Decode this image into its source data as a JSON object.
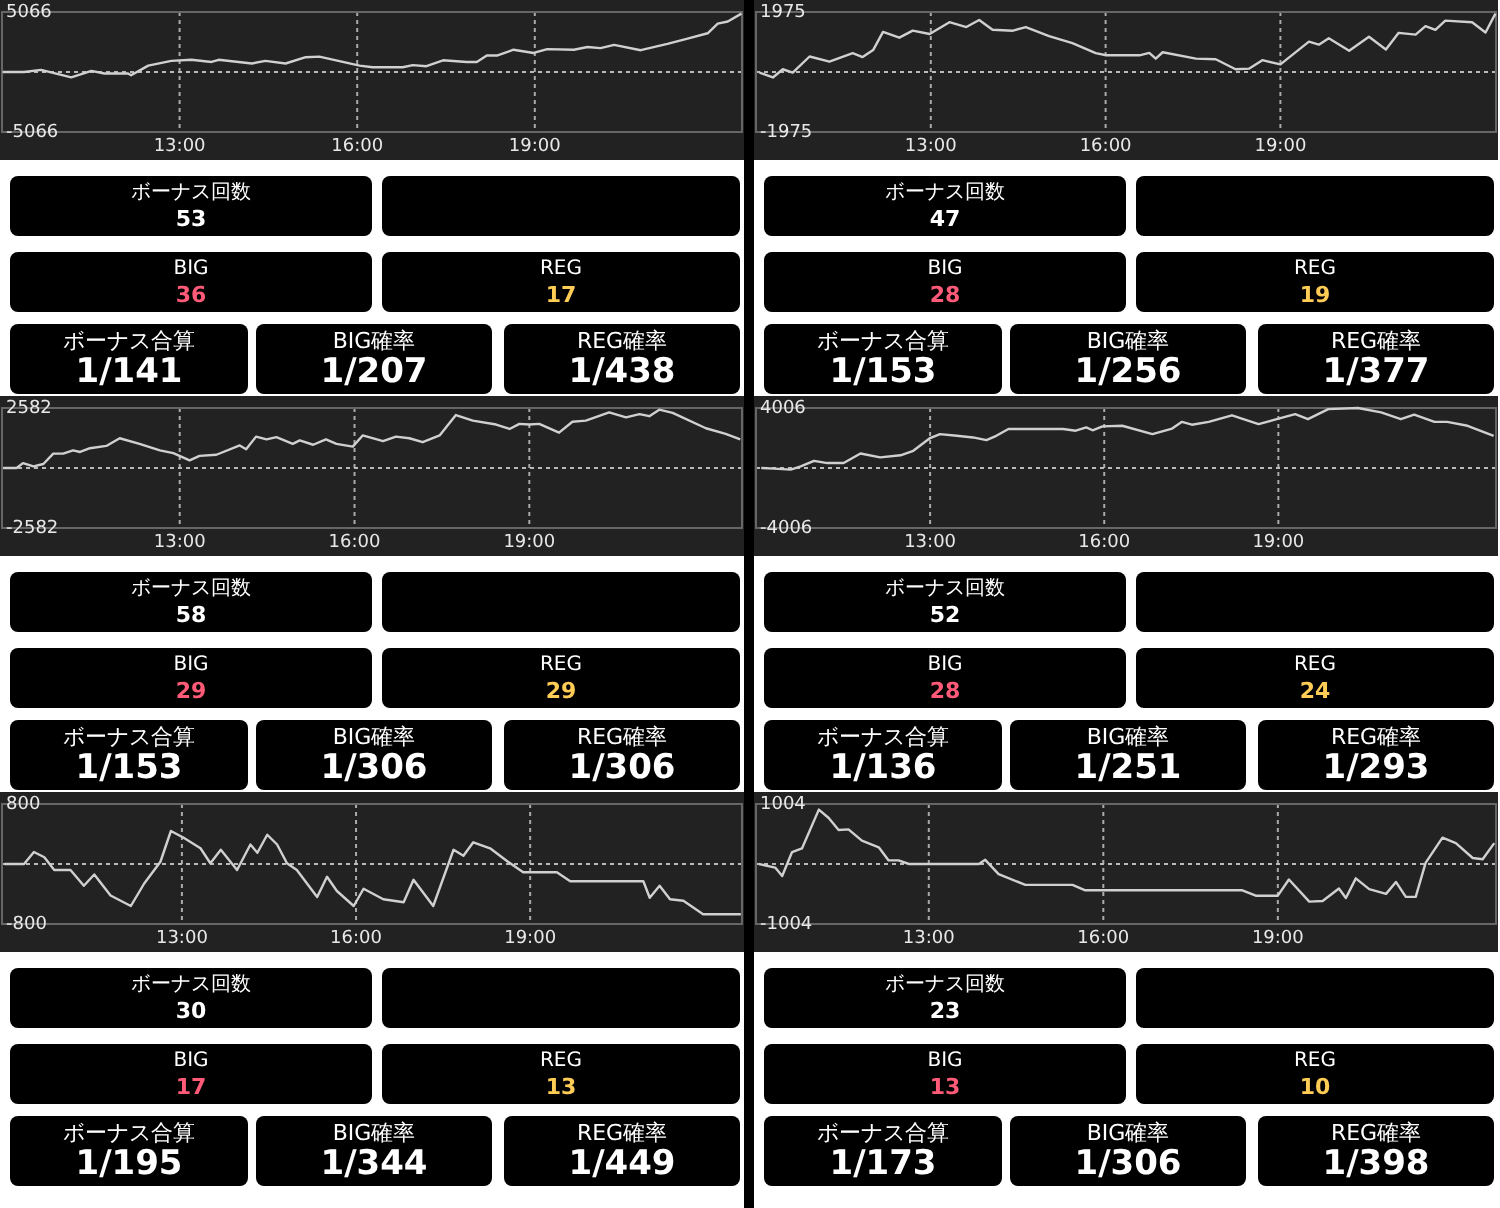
{
  "chart_data": [
    {
      "type": "line",
      "x": [
        10.01,
        10.37,
        10.66,
        11.17,
        11.51,
        11.73,
        12.13,
        12.18,
        12.47,
        12.86,
        13.2,
        13.54,
        13.66,
        14.22,
        14.45,
        14.79,
        15.13,
        15.36,
        16.04,
        16.26,
        16.77,
        16.94,
        17.17,
        17.45,
        17.85,
        18.02,
        18.19,
        18.36,
        18.64,
        18.98,
        19.21,
        19.66,
        19.89,
        20.11,
        20.34,
        20.79,
        21.24,
        21.58,
        21.92,
        22.09,
        22.26,
        22.49
      ],
      "series": [
        {
          "color": "#d0d0d0",
          "values": [
            0,
            0,
            180,
            -450,
            90,
            -130,
            -130,
            -270,
            540,
            940,
            1030,
            850,
            1030,
            720,
            940,
            720,
            1250,
            1300,
            540,
            400,
            400,
            580,
            490,
            990,
            850,
            850,
            1390,
            1390,
            1880,
            1610,
            1930,
            1880,
            2110,
            2020,
            2290,
            1840,
            2370,
            2820,
            3270,
            4080,
            4260,
            4930
          ]
        }
      ],
      "xlim": [
        10,
        22.5
      ],
      "ylim": [
        -5066,
        5066
      ],
      "xticks": [
        {
          "value": 13,
          "label": "13:00"
        },
        {
          "value": 16,
          "label": "16:00"
        },
        {
          "value": 19,
          "label": "19:00"
        }
      ],
      "yticks": [
        -5066,
        5066
      ],
      "grid": "x",
      "ref_lines": [
        {
          "axis": "y",
          "value": 0,
          "color": "#bbbbbb",
          "line_style": "dotted"
        }
      ]
    },
    {
      "type": "other",
      "annotations": [
        "ボーナス回数",
        "53",
        "BIG",
        "36",
        "REG",
        "17",
        "ボーナス合算",
        "1/141",
        "BIG確率",
        "1/207",
        "REG確率",
        "1/438"
      ]
    },
    {
      "type": "line",
      "x": [
        10.06,
        10.29,
        10.46,
        10.63,
        10.92,
        11.26,
        11.66,
        11.83,
        12.01,
        12.18,
        12.46,
        12.69,
        12.98,
        13.32,
        13.61,
        13.83,
        14.06,
        14.41,
        14.63,
        15.03,
        15.43,
        15.83,
        16.01,
        16.58,
        16.75,
        16.86,
        16.98,
        17.55,
        17.89,
        18.23,
        18.46,
        18.69,
        19.0,
        19.49,
        19.66,
        19.83,
        20.18,
        20.52,
        20.81,
        21.03,
        21.32,
        21.49,
        21.66,
        21.83,
        22.29,
        22.52,
        22.69
      ],
      "series": [
        {
          "color": "#d0d0d0",
          "values": [
            -20,
            -180,
            90,
            -20,
            510,
            340,
            620,
            490,
            720,
            1320,
            1130,
            1360,
            1250,
            1640,
            1480,
            1710,
            1390,
            1360,
            1480,
            1180,
            950,
            620,
            550,
            550,
            630,
            440,
            650,
            440,
            420,
            90,
            110,
            390,
            250,
            1000,
            900,
            1110,
            700,
            1160,
            740,
            1290,
            1230,
            1510,
            1390,
            1690,
            1640,
            1300,
            1920
          ]
        }
      ],
      "xlim": [
        10,
        22.7
      ],
      "ylim": [
        -1975,
        1975
      ],
      "xticks": [
        {
          "value": 13,
          "label": "13:00"
        },
        {
          "value": 16,
          "label": "16:00"
        },
        {
          "value": 19,
          "label": "19:00"
        }
      ],
      "yticks": [
        -1975,
        1975
      ],
      "grid": "x",
      "ref_lines": [
        {
          "axis": "y",
          "value": 0,
          "color": "#bbbbbb",
          "line_style": "dotted"
        }
      ]
    },
    {
      "type": "other",
      "annotations": [
        "ボーナス回数",
        "47",
        "BIG",
        "28",
        "REG",
        "19",
        "ボーナス合算",
        "1/153",
        "BIG確率",
        "1/256",
        "REG確率",
        "1/377"
      ]
    },
    {
      "type": "line",
      "x": [
        9.97,
        10.2,
        10.31,
        10.49,
        10.66,
        10.83,
        11.0,
        11.17,
        11.29,
        11.46,
        11.74,
        11.97,
        12.31,
        12.66,
        12.89,
        13.17,
        13.34,
        13.63,
        14.03,
        14.14,
        14.31,
        14.49,
        14.66,
        14.94,
        15.06,
        15.29,
        15.51,
        15.69,
        15.97,
        16.14,
        16.49,
        16.71,
        16.94,
        17.17,
        17.46,
        17.74,
        18.03,
        18.43,
        18.66,
        18.83,
        19.0,
        19.17,
        19.51,
        19.74,
        19.97,
        20.37,
        20.66,
        20.89,
        21.06,
        21.23,
        21.46,
        22.03,
        22.37,
        22.62
      ],
      "series": [
        {
          "color": "#d0d0d0",
          "values": [
            0,
            0,
            210,
            70,
            170,
            620,
            620,
            760,
            690,
            850,
            950,
            1280,
            1040,
            760,
            640,
            330,
            520,
            570,
            970,
            810,
            1350,
            1230,
            1330,
            1040,
            1190,
            1000,
            1230,
            1040,
            920,
            1400,
            1160,
            1350,
            1280,
            1110,
            1400,
            2280,
            2040,
            1870,
            1680,
            1900,
            1870,
            1900,
            1520,
            1990,
            2040,
            2390,
            2180,
            2320,
            2230,
            2510,
            2370,
            1710,
            1470,
            1230
          ]
        }
      ],
      "xlim": [
        9.95,
        22.65
      ],
      "ylim": [
        -2582,
        2582
      ],
      "xticks": [
        {
          "value": 13,
          "label": "13:00"
        },
        {
          "value": 16,
          "label": "16:00"
        },
        {
          "value": 19,
          "label": "19:00"
        }
      ],
      "yticks": [
        -2582,
        2582
      ],
      "grid": "x",
      "ref_lines": [
        {
          "axis": "y",
          "value": 0,
          "color": "#bbbbbb",
          "line_style": "dotted"
        }
      ]
    },
    {
      "type": "other",
      "annotations": [
        "ボーナス回数",
        "58",
        "BIG",
        "29",
        "REG",
        "29",
        "ボーナス合算",
        "1/153",
        "BIG確率",
        "1/306",
        "REG確率",
        "1/306"
      ]
    },
    {
      "type": "line",
      "x": [
        10.09,
        10.31,
        10.6,
        10.77,
        11.0,
        11.23,
        11.51,
        11.8,
        12.14,
        12.49,
        12.71,
        13.0,
        13.17,
        13.46,
        13.74,
        13.97,
        14.14,
        14.35,
        15.29,
        15.51,
        15.69,
        15.8,
        15.97,
        16.31,
        16.83,
        17.17,
        17.34,
        17.51,
        17.8,
        18.2,
        18.66,
        18.94,
        19.29,
        19.51,
        19.86,
        20.37,
        20.77,
        21.11,
        21.34,
        21.69,
        21.91,
        22.26,
        22.71
      ],
      "series": [
        {
          "color": "#d0d0d0",
          "values": [
            0,
            -40,
            -110,
            110,
            480,
            330,
            330,
            970,
            710,
            850,
            1150,
            2000,
            2260,
            2150,
            2040,
            1860,
            2150,
            2600,
            2600,
            2490,
            2710,
            2520,
            2780,
            2820,
            2260,
            2630,
            3080,
            2890,
            3080,
            3520,
            2930,
            3230,
            3600,
            3260,
            3930,
            4006,
            3710,
            3260,
            3560,
            3080,
            3080,
            2820,
            2150
          ]
        }
      ],
      "xlim": [
        10,
        22.75
      ],
      "ylim": [
        -4006,
        4006
      ],
      "xticks": [
        {
          "value": 13,
          "label": "13:00"
        },
        {
          "value": 16,
          "label": "16:00"
        },
        {
          "value": 19,
          "label": "19:00"
        }
      ],
      "yticks": [
        -4006,
        4006
      ],
      "grid": "x",
      "ref_lines": [
        {
          "axis": "y",
          "value": 0,
          "color": "#bbbbbb",
          "line_style": "dotted"
        }
      ]
    },
    {
      "type": "other",
      "annotations": [
        "ボーナス回数",
        "52",
        "BIG",
        "28",
        "REG",
        "24",
        "ボーナス合算",
        "1/136",
        "BIG確率",
        "1/251",
        "REG確率",
        "1/293"
      ]
    },
    {
      "type": "line",
      "x": [
        9.94,
        10.28,
        10.45,
        10.63,
        10.8,
        11.08,
        11.31,
        11.49,
        11.77,
        12.12,
        12.35,
        12.63,
        12.81,
        13.03,
        13.32,
        13.49,
        13.67,
        13.95,
        14.18,
        14.3,
        14.47,
        14.64,
        14.81,
        14.98,
        15.33,
        15.5,
        15.67,
        15.96,
        16.13,
        16.47,
        16.82,
        16.99,
        17.33,
        17.68,
        17.85,
        18.02,
        18.31,
        18.6,
        18.88,
        19.46,
        19.69,
        20.95,
        21.06,
        21.23,
        21.41,
        21.64,
        21.98,
        22.63
      ],
      "series": [
        {
          "color": "#d0d0d0",
          "values": [
            0,
            0,
            160,
            90,
            -80,
            -80,
            -290,
            -140,
            -420,
            -560,
            -260,
            30,
            440,
            350,
            210,
            10,
            190,
            -80,
            260,
            150,
            390,
            260,
            10,
            -80,
            -440,
            -170,
            -360,
            -560,
            -330,
            -470,
            -510,
            -210,
            -560,
            190,
            110,
            290,
            210,
            40,
            -110,
            -110,
            -230,
            -230,
            -450,
            -290,
            -470,
            -490,
            -670,
            -670
          ]
        }
      ],
      "xlim": [
        9.9,
        22.65
      ],
      "ylim": [
        -800,
        800
      ],
      "xticks": [
        {
          "value": 13,
          "label": "13:00"
        },
        {
          "value": 16,
          "label": "16:00"
        },
        {
          "value": 19,
          "label": "19:00"
        }
      ],
      "yticks": [
        -800,
        800
      ],
      "grid": "x",
      "ref_lines": [
        {
          "axis": "y",
          "value": 0,
          "color": "#bbbbbb",
          "line_style": "dotted"
        }
      ]
    },
    {
      "type": "other",
      "annotations": [
        "ボーナス回数",
        "30",
        "BIG",
        "17",
        "REG",
        "13",
        "ボーナス合算",
        "1/195",
        "BIG確率",
        "1/344",
        "REG確率",
        "1/449"
      ]
    },
    {
      "type": "line",
      "x": [
        10.08,
        10.36,
        10.48,
        10.65,
        10.82,
        11.11,
        11.28,
        11.45,
        11.62,
        11.85,
        12.14,
        12.31,
        12.48,
        12.66,
        13.86,
        13.97,
        14.2,
        14.66,
        15.47,
        15.69,
        18.39,
        18.62,
        19.0,
        19.19,
        19.54,
        19.77,
        20.05,
        20.17,
        20.34,
        20.57,
        20.86,
        21.03,
        21.2,
        21.37,
        21.54,
        21.83,
        22.06,
        22.35,
        22.52,
        22.72
      ],
      "series": [
        {
          "color": "#d0d0d0",
          "values": [
            0,
            -60,
            -200,
            200,
            260,
            910,
            770,
            570,
            580,
            390,
            280,
            60,
            60,
            0,
            0,
            70,
            -170,
            -350,
            -350,
            -440,
            -440,
            -530,
            -530,
            -260,
            -630,
            -620,
            -410,
            -570,
            -240,
            -420,
            -500,
            -300,
            -550,
            -550,
            20,
            440,
            350,
            100,
            80,
            350
          ]
        }
      ],
      "xlim": [
        10.03,
        22.75
      ],
      "ylim": [
        -1004,
        1004
      ],
      "xticks": [
        {
          "value": 13,
          "label": "13:00"
        },
        {
          "value": 16,
          "label": "16:00"
        },
        {
          "value": 19,
          "label": "19:00"
        }
      ],
      "yticks": [
        -1004,
        1004
      ],
      "grid": "x",
      "ref_lines": [
        {
          "axis": "y",
          "value": 0,
          "color": "#bbbbbb",
          "line_style": "dotted"
        }
      ]
    },
    {
      "type": "other",
      "annotations": [
        "ボーナス回数",
        "23",
        "BIG",
        "13",
        "REG",
        "10",
        "ボーナス合算",
        "1/173",
        "BIG確率",
        "1/306",
        "REG確率",
        "1/398"
      ]
    }
  ]
}
